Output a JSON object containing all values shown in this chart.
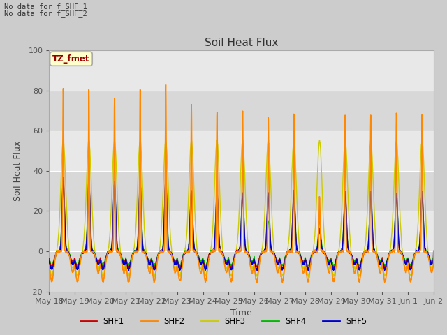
{
  "title": "Soil Heat Flux",
  "ylabel": "Soil Heat Flux",
  "xlabel": "Time",
  "ylim": [
    -20,
    100
  ],
  "no_data_text": [
    "No data for f_SHF_1",
    "No data for f_SHF_2"
  ],
  "tz_label": "TZ_fmet",
  "tz_bg": "#ffffcc",
  "tz_border": "#aaaaaa",
  "legend_entries": [
    "SHF1",
    "SHF2",
    "SHF3",
    "SHF4",
    "SHF5"
  ],
  "legend_colors": [
    "#cc0000",
    "#ff8800",
    "#cccc00",
    "#00bb00",
    "#0000cc"
  ],
  "x_tick_labels": [
    "May 18",
    "May 19",
    "May 20",
    "May 21",
    "May 22",
    "May 23",
    "May 24",
    "May 25",
    "May 26",
    "May 27",
    "May 28",
    "May 29",
    "May 30",
    "May 31",
    "Jun 1",
    "Jun 2"
  ],
  "num_days": 15,
  "grid_color": "#ffffff",
  "fig_bg": "#cccccc",
  "plot_bg": "#e8e8e8",
  "series_colors": {
    "SHF1": "#cc0000",
    "SHF2": "#ff8800",
    "SHF3": "#cccc00",
    "SHF4": "#00bb00",
    "SHF5": "#0000cc"
  },
  "day_peaks_shf2": [
    81,
    80,
    76,
    80,
    83,
    73,
    70,
    70,
    67,
    69,
    28,
    68,
    68,
    69,
    68
  ],
  "day_peaks_shf3": [
    55,
    55,
    55,
    55,
    55,
    55,
    55,
    55,
    55,
    55,
    55,
    55,
    55,
    55,
    55
  ],
  "day_peaks_shf1": [
    35,
    35,
    33,
    33,
    35,
    30,
    29,
    29,
    29,
    30,
    10,
    30,
    30,
    29,
    29
  ],
  "day_peaks_shf5": [
    36,
    35,
    34,
    34,
    36,
    30,
    29,
    29,
    29,
    30,
    11,
    30,
    30,
    29,
    29
  ],
  "day_peaks_shf4": [
    34,
    34,
    32,
    32,
    34,
    28,
    28,
    28,
    15,
    28,
    15,
    28,
    28,
    28,
    28
  ]
}
